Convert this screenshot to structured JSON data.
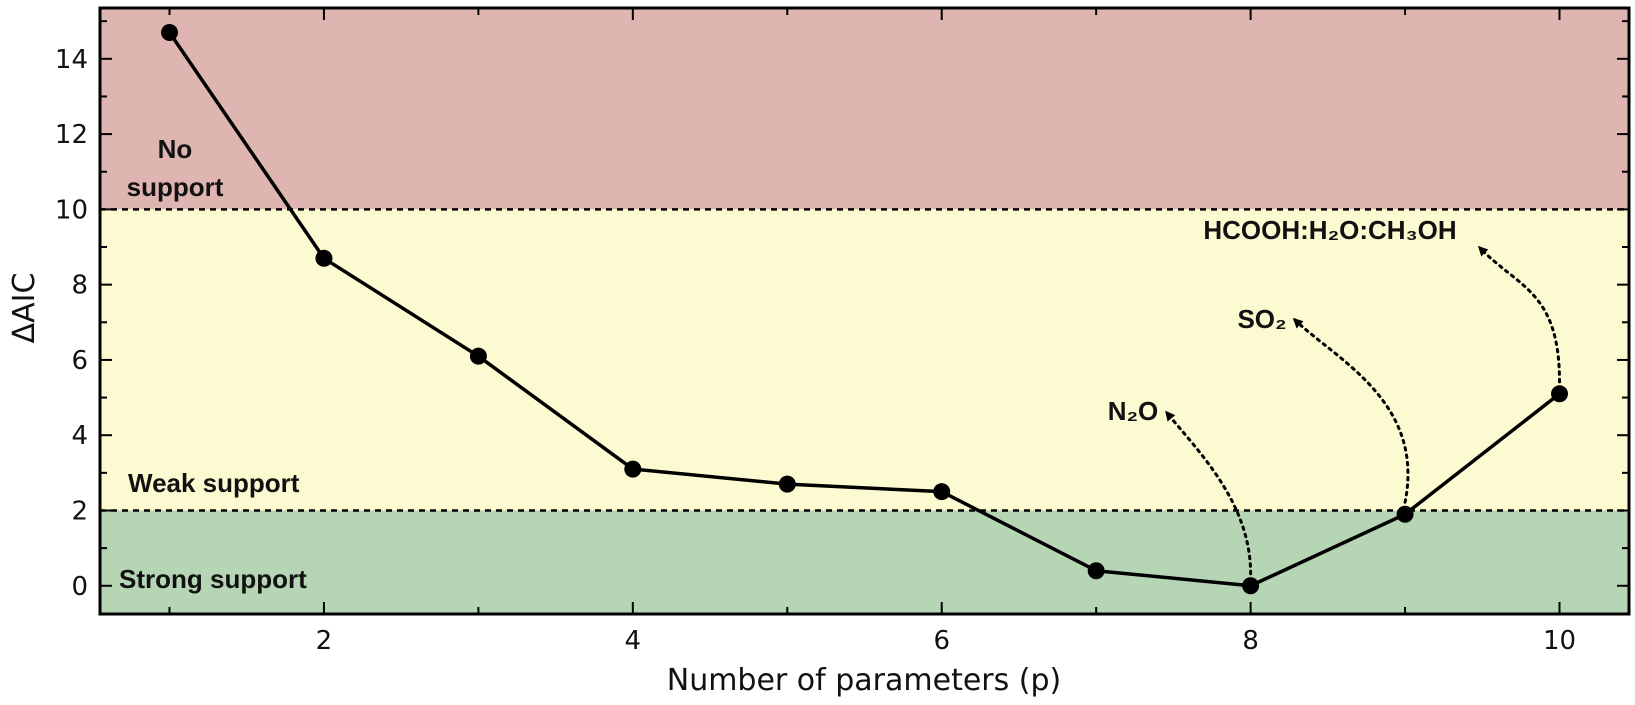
{
  "chart_data": {
    "type": "line",
    "xlabel": "Number of parameters (p)",
    "ylabel": "ΔAIC",
    "xlim": [
      0.55,
      10.45
    ],
    "ylim": [
      -0.75,
      15.35
    ],
    "x_ticks": [
      2,
      4,
      6,
      8,
      10
    ],
    "y_ticks": [
      0,
      2,
      4,
      6,
      8,
      10,
      12,
      14
    ],
    "series": [
      {
        "x": [
          1,
          2,
          3,
          4,
          5,
          6,
          7,
          8,
          9,
          10
        ],
        "y": [
          14.7,
          8.7,
          6.1,
          3.1,
          2.7,
          2.5,
          0.4,
          0.0,
          1.9,
          5.1
        ],
        "color": "#000000"
      }
    ],
    "regions": [
      {
        "label": "No support",
        "lines": [
          "No",
          "support"
        ],
        "y_from": 10,
        "y_to": 15.35,
        "color": "#dfb5b2"
      },
      {
        "label": "Weak support",
        "y_from": 2,
        "y_to": 10,
        "color": "#fcfad0"
      },
      {
        "label": "Strong support",
        "y_from": -0.75,
        "y_to": 2,
        "color": "#b5d5b4"
      }
    ],
    "thresholds": [
      2,
      10
    ],
    "annotations": [
      {
        "text": "N₂O",
        "from_x": 8,
        "from_y": 0.0
      },
      {
        "text": "SO₂",
        "from_x": 9,
        "from_y": 1.9
      },
      {
        "text": "HCOOH:H₂O:CH₃OH",
        "from_x": 10,
        "from_y": 5.1
      }
    ],
    "grid": false
  }
}
